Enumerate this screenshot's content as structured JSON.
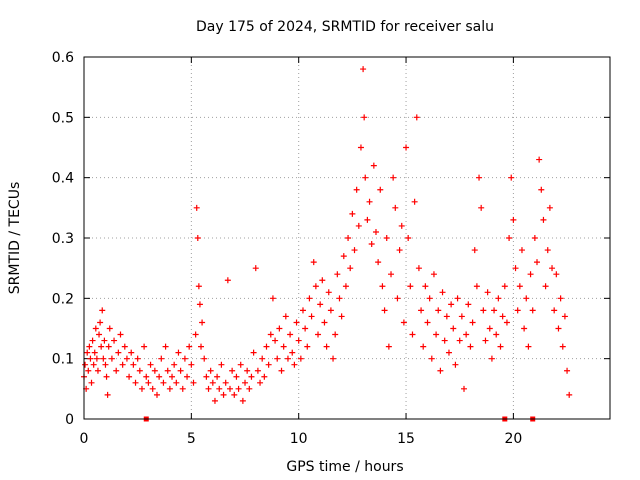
{
  "chart_data": {
    "type": "scatter",
    "title": "Day 175 of 2024, SRMTID for receiver salu",
    "xlabel": "GPS time / hours",
    "ylabel": "SRMTID / TECUs",
    "xlim": [
      0,
      24.5
    ],
    "ylim": [
      0,
      0.6
    ],
    "xticks": [
      0,
      5,
      10,
      15,
      20
    ],
    "xtick_labels": [
      "0",
      "5",
      "10",
      "15",
      "20"
    ],
    "yticks": [
      0,
      0.1,
      0.2,
      0.3,
      0.4,
      0.5,
      0.6
    ],
    "ytick_labels": [
      "0",
      "0.1",
      "0.2",
      "0.3",
      "0.4",
      "0.5",
      "0.6"
    ],
    "grid": true,
    "marker": "+",
    "color": "#ff0000",
    "series": [
      {
        "name": "SRMTID",
        "points": [
          [
            0.0,
            0.07
          ],
          [
            0.05,
            0.09
          ],
          [
            0.1,
            0.05
          ],
          [
            0.15,
            0.11
          ],
          [
            0.2,
            0.08
          ],
          [
            0.25,
            0.12
          ],
          [
            0.3,
            0.1
          ],
          [
            0.35,
            0.06
          ],
          [
            0.4,
            0.13
          ],
          [
            0.45,
            0.09
          ],
          [
            0.5,
            0.11
          ],
          [
            0.55,
            0.15
          ],
          [
            0.6,
            0.1
          ],
          [
            0.65,
            0.08
          ],
          [
            0.7,
            0.14
          ],
          [
            0.75,
            0.16
          ],
          [
            0.8,
            0.12
          ],
          [
            0.85,
            0.18
          ],
          [
            0.9,
            0.1
          ],
          [
            0.95,
            0.13
          ],
          [
            1.0,
            0.09
          ],
          [
            1.05,
            0.07
          ],
          [
            1.1,
            0.04
          ],
          [
            1.15,
            0.12
          ],
          [
            1.2,
            0.15
          ],
          [
            1.3,
            0.1
          ],
          [
            1.4,
            0.13
          ],
          [
            1.5,
            0.08
          ],
          [
            1.6,
            0.11
          ],
          [
            1.7,
            0.14
          ],
          [
            1.8,
            0.09
          ],
          [
            1.9,
            0.12
          ],
          [
            2.0,
            0.1
          ],
          [
            2.1,
            0.07
          ],
          [
            2.2,
            0.11
          ],
          [
            2.3,
            0.09
          ],
          [
            2.4,
            0.06
          ],
          [
            2.5,
            0.1
          ],
          [
            2.6,
            0.08
          ],
          [
            2.7,
            0.05
          ],
          [
            2.8,
            0.12
          ],
          [
            2.9,
            0.07
          ],
          [
            3.0,
            0.06
          ],
          [
            3.1,
            0.09
          ],
          [
            3.2,
            0.05
          ],
          [
            3.3,
            0.08
          ],
          [
            3.4,
            0.04
          ],
          [
            3.5,
            0.07
          ],
          [
            3.6,
            0.1
          ],
          [
            3.7,
            0.06
          ],
          [
            3.8,
            0.12
          ],
          [
            3.9,
            0.08
          ],
          [
            4.0,
            0.05
          ],
          [
            4.1,
            0.07
          ],
          [
            4.2,
            0.09
          ],
          [
            4.3,
            0.06
          ],
          [
            4.4,
            0.11
          ],
          [
            4.5,
            0.08
          ],
          [
            4.6,
            0.05
          ],
          [
            4.7,
            0.1
          ],
          [
            4.8,
            0.07
          ],
          [
            4.9,
            0.12
          ],
          [
            5.0,
            0.09
          ],
          [
            5.1,
            0.06
          ],
          [
            5.2,
            0.14
          ],
          [
            5.25,
            0.35
          ],
          [
            5.3,
            0.3
          ],
          [
            5.35,
            0.22
          ],
          [
            5.4,
            0.19
          ],
          [
            5.45,
            0.12
          ],
          [
            5.5,
            0.16
          ],
          [
            5.6,
            0.1
          ],
          [
            5.7,
            0.07
          ],
          [
            5.8,
            0.05
          ],
          [
            5.9,
            0.08
          ],
          [
            6.0,
            0.06
          ],
          [
            6.1,
            0.03
          ],
          [
            6.2,
            0.07
          ],
          [
            6.3,
            0.05
          ],
          [
            6.4,
            0.09
          ],
          [
            6.5,
            0.04
          ],
          [
            6.6,
            0.06
          ],
          [
            6.7,
            0.23
          ],
          [
            6.8,
            0.05
          ],
          [
            6.9,
            0.08
          ],
          [
            7.0,
            0.04
          ],
          [
            7.1,
            0.07
          ],
          [
            7.2,
            0.05
          ],
          [
            7.3,
            0.09
          ],
          [
            7.4,
            0.03
          ],
          [
            7.5,
            0.06
          ],
          [
            7.6,
            0.08
          ],
          [
            7.7,
            0.05
          ],
          [
            7.8,
            0.07
          ],
          [
            7.9,
            0.11
          ],
          [
            8.0,
            0.25
          ],
          [
            8.1,
            0.08
          ],
          [
            8.2,
            0.06
          ],
          [
            8.3,
            0.1
          ],
          [
            8.4,
            0.07
          ],
          [
            8.5,
            0.12
          ],
          [
            8.6,
            0.09
          ],
          [
            8.7,
            0.14
          ],
          [
            8.8,
            0.2
          ],
          [
            8.9,
            0.13
          ],
          [
            9.0,
            0.1
          ],
          [
            9.1,
            0.15
          ],
          [
            9.2,
            0.08
          ],
          [
            9.3,
            0.12
          ],
          [
            9.4,
            0.17
          ],
          [
            9.5,
            0.1
          ],
          [
            9.6,
            0.14
          ],
          [
            9.7,
            0.11
          ],
          [
            9.8,
            0.09
          ],
          [
            9.9,
            0.16
          ],
          [
            10.0,
            0.13
          ],
          [
            10.1,
            0.1
          ],
          [
            10.2,
            0.18
          ],
          [
            10.3,
            0.15
          ],
          [
            10.4,
            0.12
          ],
          [
            10.5,
            0.2
          ],
          [
            10.6,
            0.17
          ],
          [
            10.7,
            0.26
          ],
          [
            10.8,
            0.22
          ],
          [
            10.9,
            0.14
          ],
          [
            11.0,
            0.19
          ],
          [
            11.1,
            0.23
          ],
          [
            11.2,
            0.16
          ],
          [
            11.3,
            0.12
          ],
          [
            11.4,
            0.21
          ],
          [
            11.5,
            0.18
          ],
          [
            11.6,
            0.1
          ],
          [
            11.7,
            0.14
          ],
          [
            11.8,
            0.24
          ],
          [
            11.9,
            0.2
          ],
          [
            12.0,
            0.17
          ],
          [
            12.1,
            0.27
          ],
          [
            12.2,
            0.22
          ],
          [
            12.3,
            0.3
          ],
          [
            12.4,
            0.25
          ],
          [
            12.5,
            0.34
          ],
          [
            12.6,
            0.28
          ],
          [
            12.7,
            0.38
          ],
          [
            12.8,
            0.32
          ],
          [
            12.9,
            0.45
          ],
          [
            13.0,
            0.58
          ],
          [
            13.05,
            0.5
          ],
          [
            13.1,
            0.4
          ],
          [
            13.2,
            0.33
          ],
          [
            13.3,
            0.36
          ],
          [
            13.4,
            0.29
          ],
          [
            13.5,
            0.42
          ],
          [
            13.6,
            0.31
          ],
          [
            13.7,
            0.26
          ],
          [
            13.8,
            0.38
          ],
          [
            13.9,
            0.22
          ],
          [
            14.0,
            0.18
          ],
          [
            14.1,
            0.3
          ],
          [
            14.2,
            0.12
          ],
          [
            14.3,
            0.24
          ],
          [
            14.4,
            0.4
          ],
          [
            14.5,
            0.35
          ],
          [
            14.6,
            0.2
          ],
          [
            14.7,
            0.28
          ],
          [
            14.8,
            0.32
          ],
          [
            14.9,
            0.16
          ],
          [
            15.0,
            0.45
          ],
          [
            15.1,
            0.3
          ],
          [
            15.2,
            0.22
          ],
          [
            15.3,
            0.14
          ],
          [
            15.4,
            0.36
          ],
          [
            15.5,
            0.5
          ],
          [
            15.6,
            0.25
          ],
          [
            15.7,
            0.18
          ],
          [
            15.8,
            0.12
          ],
          [
            15.9,
            0.22
          ],
          [
            16.0,
            0.16
          ],
          [
            16.1,
            0.2
          ],
          [
            16.2,
            0.1
          ],
          [
            16.3,
            0.24
          ],
          [
            16.4,
            0.14
          ],
          [
            16.5,
            0.18
          ],
          [
            16.6,
            0.08
          ],
          [
            16.7,
            0.21
          ],
          [
            16.8,
            0.13
          ],
          [
            16.9,
            0.17
          ],
          [
            17.0,
            0.11
          ],
          [
            17.1,
            0.19
          ],
          [
            17.2,
            0.15
          ],
          [
            17.3,
            0.09
          ],
          [
            17.4,
            0.2
          ],
          [
            17.5,
            0.13
          ],
          [
            17.6,
            0.17
          ],
          [
            17.7,
            0.05
          ],
          [
            17.8,
            0.14
          ],
          [
            17.9,
            0.19
          ],
          [
            18.0,
            0.12
          ],
          [
            18.1,
            0.16
          ],
          [
            18.2,
            0.28
          ],
          [
            18.3,
            0.22
          ],
          [
            18.4,
            0.4
          ],
          [
            18.5,
            0.35
          ],
          [
            18.6,
            0.18
          ],
          [
            18.7,
            0.13
          ],
          [
            18.8,
            0.21
          ],
          [
            18.9,
            0.15
          ],
          [
            19.0,
            0.1
          ],
          [
            19.1,
            0.18
          ],
          [
            19.2,
            0.14
          ],
          [
            19.3,
            0.2
          ],
          [
            19.4,
            0.12
          ],
          [
            19.5,
            0.17
          ],
          [
            19.6,
            0.22
          ],
          [
            19.7,
            0.16
          ],
          [
            19.8,
            0.3
          ],
          [
            19.9,
            0.4
          ],
          [
            20.0,
            0.33
          ],
          [
            20.1,
            0.25
          ],
          [
            20.2,
            0.18
          ],
          [
            20.3,
            0.22
          ],
          [
            20.4,
            0.28
          ],
          [
            20.5,
            0.15
          ],
          [
            20.6,
            0.2
          ],
          [
            20.7,
            0.12
          ],
          [
            20.8,
            0.24
          ],
          [
            20.9,
            0.18
          ],
          [
            21.0,
            0.3
          ],
          [
            21.1,
            0.26
          ],
          [
            21.2,
            0.43
          ],
          [
            21.3,
            0.38
          ],
          [
            21.4,
            0.33
          ],
          [
            21.5,
            0.22
          ],
          [
            21.6,
            0.28
          ],
          [
            21.7,
            0.35
          ],
          [
            21.8,
            0.25
          ],
          [
            21.9,
            0.18
          ],
          [
            22.0,
            0.24
          ],
          [
            22.1,
            0.15
          ],
          [
            22.2,
            0.2
          ],
          [
            22.3,
            0.12
          ],
          [
            22.4,
            0.17
          ],
          [
            22.5,
            0.08
          ],
          [
            22.6,
            0.04
          ]
        ]
      }
    ],
    "axis_markers": [
      2.9,
      19.6,
      20.9
    ]
  }
}
